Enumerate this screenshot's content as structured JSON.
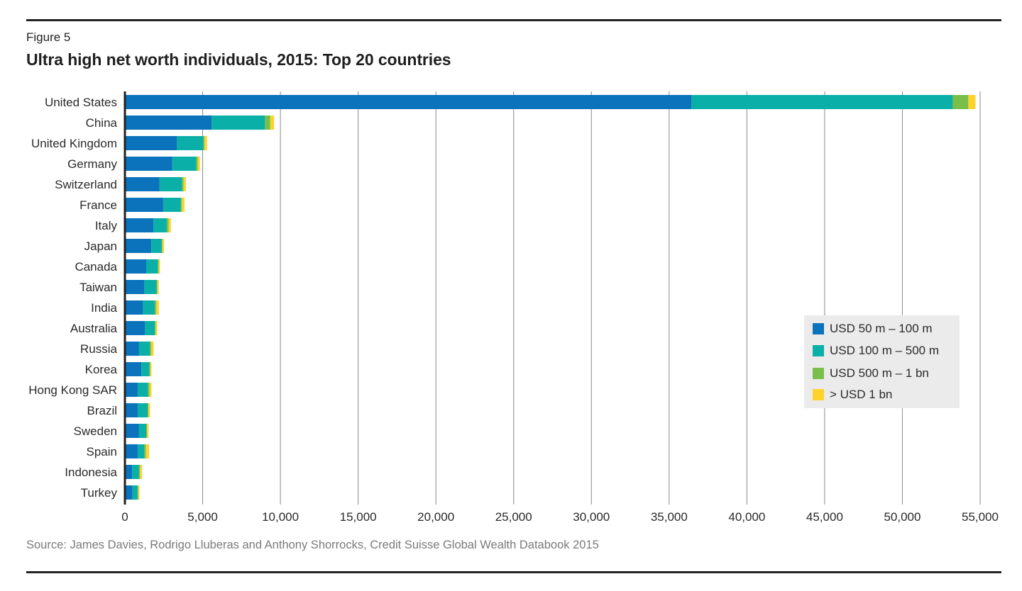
{
  "figure_label": "Figure 5",
  "title": "Ultra high net worth individuals, 2015: Top 20 countries",
  "source": "Source: James Davies, Rodrigo Lluberas and Anthony Shorrocks, Credit Suisse Global Wealth Databook 2015",
  "chart_data": {
    "type": "bar",
    "orientation": "horizontal",
    "stacked": true,
    "title": "Ultra high net worth individuals, 2015: Top 20 countries",
    "xlabel": "",
    "ylabel": "",
    "xlim": [
      0,
      55000
    ],
    "x_ticks": [
      0,
      5000,
      10000,
      15000,
      20000,
      25000,
      30000,
      35000,
      40000,
      45000,
      50000,
      55000
    ],
    "x_tick_labels": [
      "0",
      "5,000",
      "10,000",
      "15,000",
      "20,000",
      "25,000",
      "30,000",
      "35,000",
      "40,000",
      "45,000",
      "50,000",
      "55,000"
    ],
    "grid": "vertical",
    "legend_position": "right-middle",
    "categories": [
      "United States",
      "China",
      "United Kingdom",
      "Germany",
      "Switzerland",
      "France",
      "Italy",
      "Japan",
      "Canada",
      "Taiwan",
      "India",
      "Australia",
      "Russia",
      "Korea",
      "Hong Kong SAR",
      "Brazil",
      "Sweden",
      "Spain",
      "Indonesia",
      "Turkey"
    ],
    "series": [
      {
        "name": "USD 50 m – 100 m",
        "color": "#0a73bb",
        "values": [
          36440,
          5570,
          3350,
          3050,
          2230,
          2460,
          1830,
          1700,
          1370,
          1250,
          1160,
          1280,
          910,
          1060,
          820,
          820,
          910,
          820,
          460,
          490
        ]
      },
      {
        "name": "USD 100 m – 500 m",
        "color": "#0ab0a8",
        "values": [
          16800,
          3440,
          1700,
          1540,
          1450,
          1140,
          860,
          670,
          760,
          800,
          770,
          650,
          700,
          520,
          660,
          640,
          460,
          430,
          450,
          330
        ]
      },
      {
        "name": "USD 500 m – 1 bn",
        "color": "#79bf4a",
        "values": [
          1000,
          340,
          70,
          90,
          90,
          60,
          120,
          40,
          40,
          30,
          80,
          50,
          80,
          40,
          100,
          50,
          50,
          100,
          50,
          30
        ]
      },
      {
        "name": "> USD 1 bn",
        "color": "#fdd22b",
        "values": [
          460,
          240,
          160,
          140,
          150,
          170,
          140,
          110,
          90,
          100,
          170,
          100,
          160,
          90,
          130,
          110,
          100,
          200,
          140,
          90
        ]
      }
    ]
  },
  "legend": [
    {
      "label": "USD 50 m – 100 m",
      "color": "#0a73bb"
    },
    {
      "label": "USD 100 m – 500 m",
      "color": "#0ab0a8"
    },
    {
      "label": "USD 500 m – 1 bn",
      "color": "#79bf4a"
    },
    {
      "label": "> USD 1 bn",
      "color": "#fdd22b"
    }
  ]
}
